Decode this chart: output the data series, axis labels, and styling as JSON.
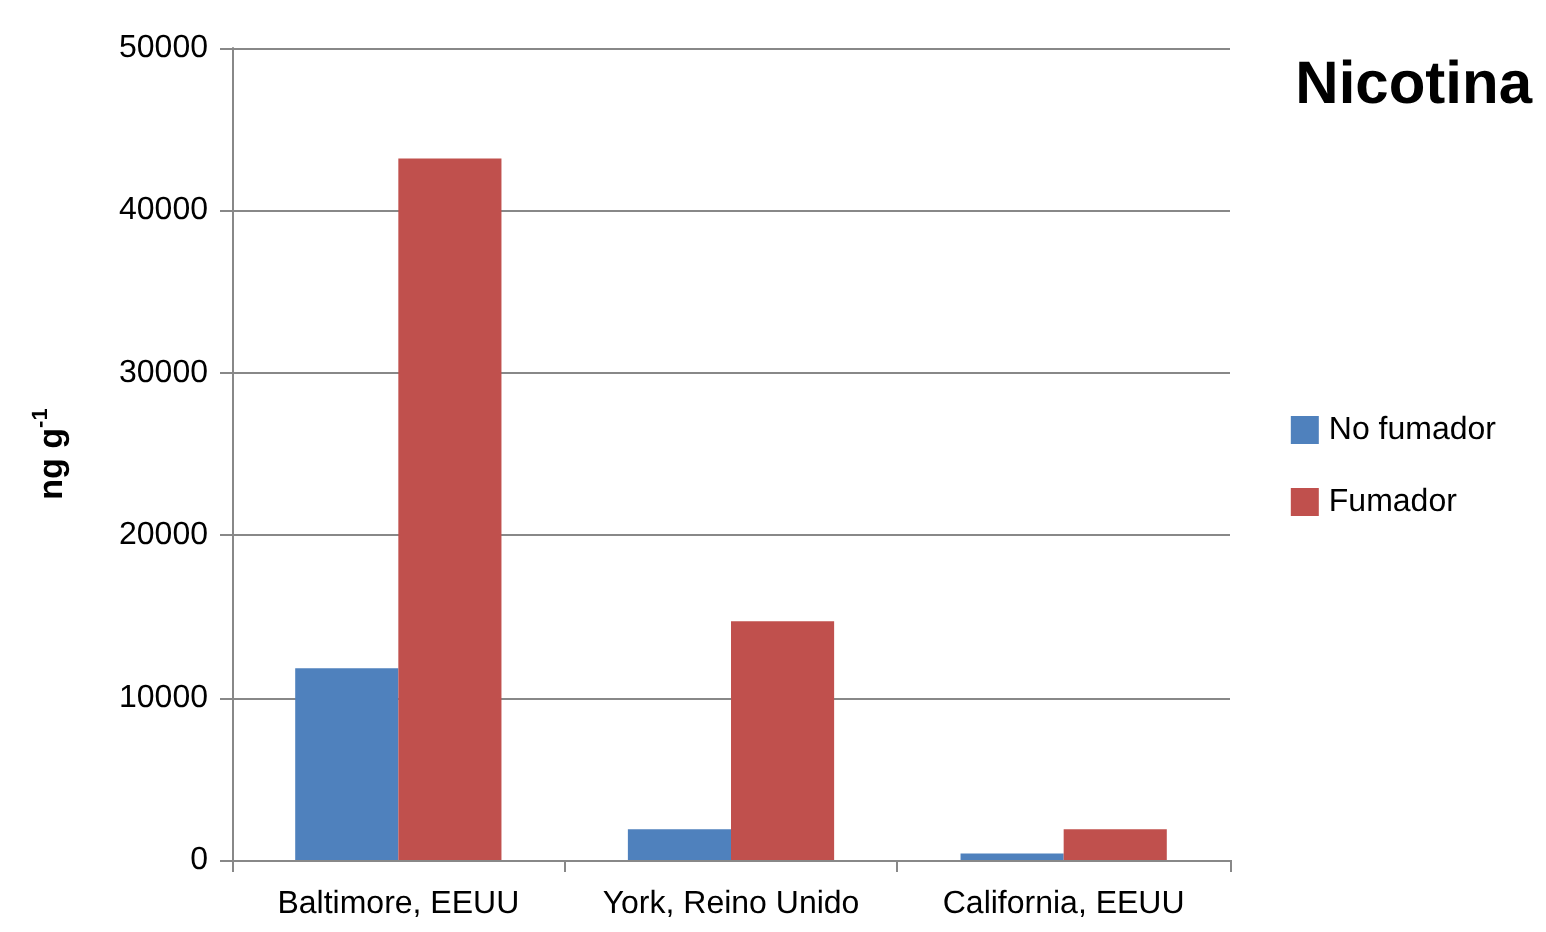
{
  "chart_data": {
    "type": "bar",
    "title": "Nicotina",
    "ylabel": "ng g$^{-1}$",
    "categories": [
      "Baltimore, EEUU",
      "York, Reino Unido",
      "California, EEUU"
    ],
    "series": [
      {
        "name": "No fumador",
        "color": "#4f81bd",
        "values": [
          11800,
          1900,
          400
        ]
      },
      {
        "name": "Fumador",
        "color": "#c0504d",
        "values": [
          43200,
          14700,
          1900
        ]
      }
    ],
    "ylim": [
      0,
      50000
    ],
    "yticks": [
      0,
      10000,
      20000,
      30000,
      40000,
      50000
    ],
    "grid": "y",
    "legend": "right"
  }
}
